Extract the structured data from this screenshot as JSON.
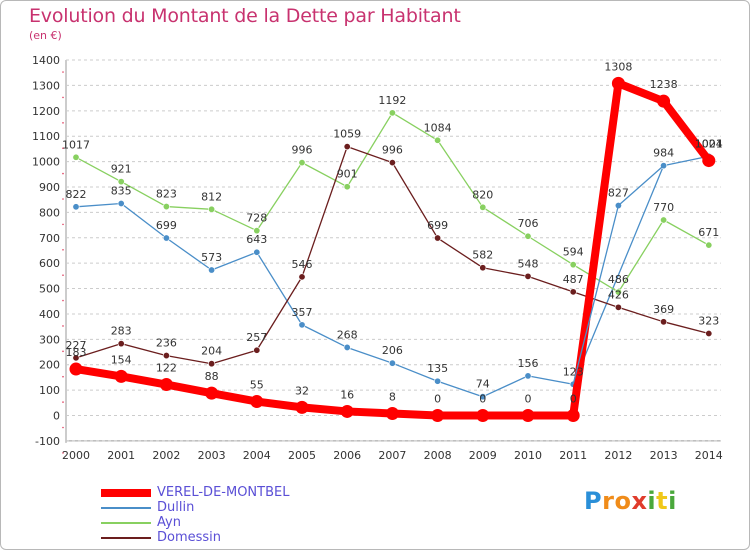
{
  "title": "Evolution du Montant de la Dette par Habitant",
  "subtitle": "(en €)",
  "logo": {
    "letters": [
      "P",
      "r",
      "o",
      "x",
      "i",
      "t",
      "i"
    ],
    "colors": [
      "#2a8fd8",
      "#f08c1a",
      "#f08c1a",
      "#e03c2c",
      "#4aa83c",
      "#f0c81a",
      "#4aa83c"
    ]
  },
  "chart_data": {
    "type": "line",
    "x": [
      "2000",
      "2001",
      "2002",
      "2003",
      "2004",
      "2005",
      "2006",
      "2007",
      "2008",
      "2009",
      "2010",
      "2011",
      "2012",
      "2013",
      "2014"
    ],
    "ylim": [
      -100,
      1400
    ],
    "yticks": [
      -100,
      0,
      100,
      200,
      300,
      400,
      500,
      600,
      700,
      800,
      900,
      1000,
      1100,
      1200,
      1300,
      1400
    ],
    "grid": "horizontal dashed",
    "legend_position": "bottom-left",
    "series": [
      {
        "name": "VEREL-DE-MONTBEL",
        "color": "#ff0000",
        "width": 8,
        "marker": 6.5,
        "values": [
          183,
          154,
          122,
          88,
          55,
          32,
          16,
          8,
          0,
          0,
          0,
          0,
          1308,
          1238,
          1004
        ]
      },
      {
        "name": "Dullin",
        "color": "#4a8ec8",
        "width": 1.3,
        "marker": 3.2,
        "values": [
          822,
          835,
          699,
          573,
          643,
          357,
          268,
          206,
          135,
          74,
          156,
          123,
          null,
          984,
          1021
        ]
      },
      {
        "name": "Ayn",
        "color": "#88d060",
        "width": 1.3,
        "marker": 3.2,
        "values": [
          1017,
          921,
          823,
          812,
          728,
          996,
          901,
          1192,
          1084,
          820,
          706,
          594,
          486,
          770,
          671
        ]
      },
      {
        "name": "Domessin",
        "color": "#6b1e1e",
        "width": 1.3,
        "marker": 3.2,
        "values": [
          227,
          283,
          236,
          204,
          257,
          546,
          1059,
          996,
          699,
          582,
          548,
          487,
          426,
          369,
          323
        ]
      }
    ],
    "data_labels": {
      "VEREL-DE-MONTBEL": [
        "183",
        "154",
        "122",
        "88",
        "55",
        "32",
        "16",
        "8",
        "0",
        "0",
        "0",
        "0",
        "1308",
        "1238",
        "1004"
      ],
      "Dullin": [
        "822",
        "835",
        "699",
        "573",
        "643",
        "357",
        "268",
        "206",
        "135",
        "74",
        "156",
        "123",
        "827",
        "984",
        "1021"
      ],
      "Ayn": [
        "1017",
        "921",
        "823",
        "812",
        "728",
        "996",
        "901",
        "1192",
        "1084",
        "820",
        "706",
        "594",
        "486",
        "770",
        "671"
      ],
      "Domessin": [
        "227",
        "283",
        "236",
        "204",
        "257",
        "546",
        "1059",
        "996",
        "699",
        "582",
        "548",
        "487",
        "426",
        "369",
        "323"
      ]
    }
  }
}
